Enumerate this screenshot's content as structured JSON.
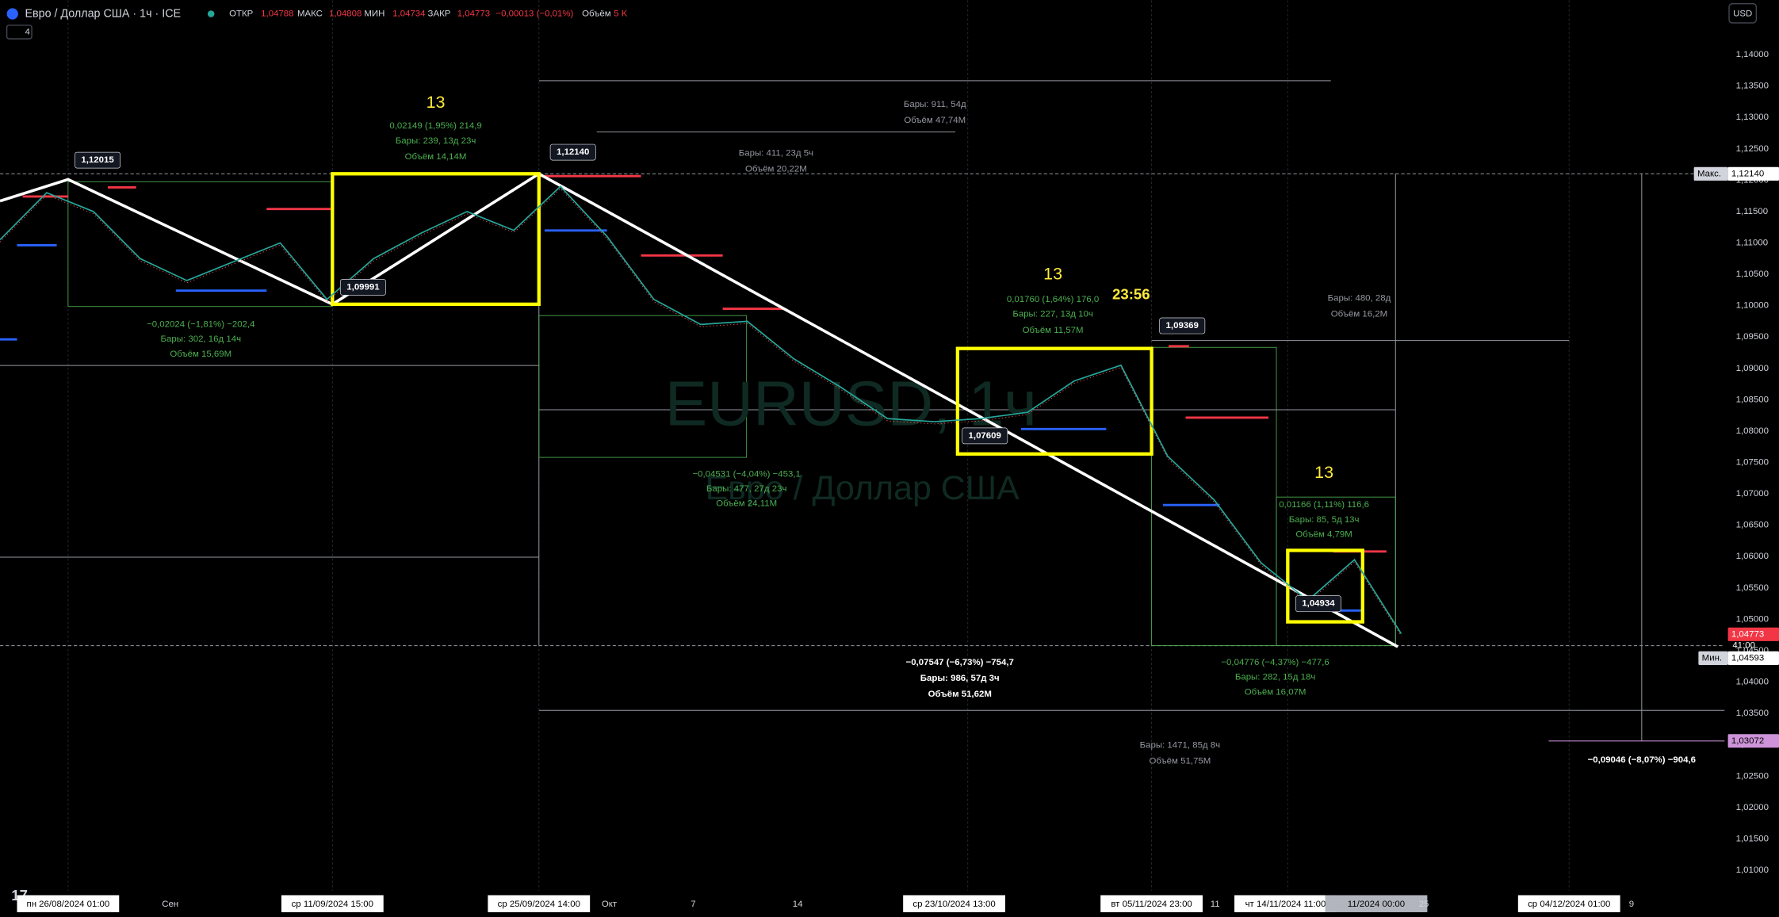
{
  "header": {
    "symbol": "Евро / Доллар США · 1ч · ICE",
    "open_label": "ОТКР",
    "open": "1,04788",
    "high_label": "МАКС",
    "high": "1,04808",
    "low_label": "МИН",
    "low": "1,04734",
    "close_label": "ЗАКР",
    "close": "1,04773",
    "change": "−0,00013 (−0,01%)",
    "volume_label": "Объём",
    "volume": "5 K",
    "indicator_count": "4",
    "currency": "USD"
  },
  "price_axis": {
    "ticks": [
      "1,14000",
      "1,13500",
      "1,13000",
      "1,12500",
      "1,12000",
      "1,11500",
      "1,11000",
      "1,10500",
      "1,10000",
      "1,09500",
      "1,09000",
      "1,08500",
      "1,08000",
      "1,07500",
      "1,07000",
      "1,06500",
      "1,06000",
      "1,05500",
      "1,05000",
      "1,04500",
      "1,04000",
      "1,03500",
      "1,03000",
      "1,02500",
      "1,02000",
      "1,01500",
      "1,01000"
    ],
    "max_label": "Макс.",
    "max_price": "1,12140",
    "last_price": "1,04773",
    "countdown": "41:00",
    "min_label": "Мин.",
    "min_price": "1,04593",
    "target_price": "1,03072"
  },
  "time_axis": {
    "labels": [
      "пн 26/08/2024 01:00",
      "Сен",
      "ср 11/09/2024 15:00",
      "ср 25/09/2024 14:00",
      "Окт",
      "7",
      "14",
      "ср 23/10/2024 13:00",
      "вт 05/11/2024 23:00",
      "11",
      "чт 14/11/2024 11:00",
      "11/2024 00:00",
      "25",
      "ср 04/12/2024 01:00",
      "9"
    ]
  },
  "watermark": {
    "symbol": "EURUSD, 1ч",
    "name": "Евро / Доллар США"
  },
  "price_labels": [
    "1,12015",
    "1,12140",
    "1,09991",
    "1,09369",
    "1,07609",
    "1,04934"
  ],
  "timer": "23:56",
  "annotations": [
    [
      "13",
      "0,02149 (1,95%) 214,9",
      "Бары: 239, 13д 23ч",
      "Объём 14,14M"
    ],
    [
      "−0,02024 (−1,81%) −202,4",
      "Бары: 302, 16д 14ч",
      "Объём 15,69M"
    ],
    [
      "Бары: 911, 54д",
      "Объём 47,74M"
    ],
    [
      "Бары: 411, 23д 5ч",
      "Объём 20,22M"
    ],
    [
      "13",
      "0,01760 (1,64%) 176,0",
      "Бары: 227, 13д 10ч",
      "Объём 11,57M"
    ],
    [
      "Бары: 480, 28д",
      "Объём 16,2M"
    ],
    [
      "−0,04531 (−4,04%) −453,1",
      "Бары: 477, 27д 23ч",
      "Объём 24,11M"
    ],
    [
      "13",
      "0,01166 (1,11%) 116,6",
      "Бары: 85, 5д 13ч",
      "Объём 4,79M"
    ],
    [
      "−0,07547 (−6,73%) −754,7",
      "Бары: 986, 57д 3ч",
      "Объём 51,62M"
    ],
    [
      "−0,04776 (−4,37%) −477,6",
      "Бары: 282, 15д 18ч",
      "Объём 16,07M"
    ],
    [
      "Бары: 1471, 85д 8ч",
      "Объём 51,75M"
    ],
    [
      "−0,09046 (−8,07%) −904,6"
    ]
  ],
  "price_path": [
    1.1105,
    1.118,
    1.115,
    1.1075,
    1.104,
    1.107,
    1.11,
    1.101,
    1.1075,
    1.1115,
    1.115,
    1.112,
    1.119,
    1.111,
    1.101,
    1.097,
    1.0975,
    1.0915,
    1.087,
    1.082,
    1.0815,
    1.082,
    1.083,
    1.088,
    1.0905,
    1.076,
    1.069,
    1.059,
    1.053,
    1.0595,
    1.0477
  ]
}
